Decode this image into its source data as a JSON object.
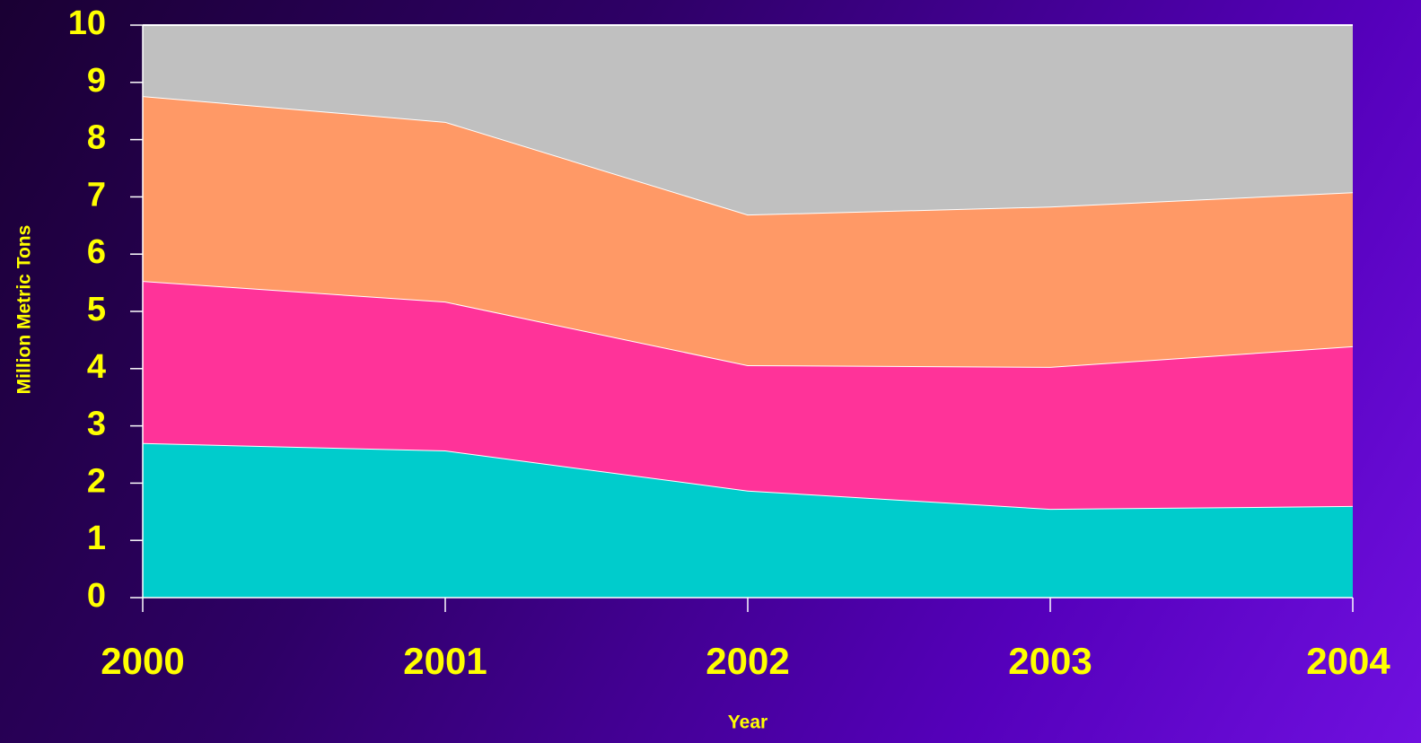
{
  "chart_data": {
    "type": "stacked_area",
    "x_label": "Year",
    "y_label": "Million Metric Tons",
    "categories": [
      "2000",
      "2001",
      "2002",
      "2003",
      "2004"
    ],
    "series": [
      {
        "color": "#00cccc",
        "values": [
          2.7,
          2.57,
          1.87,
          1.55,
          1.6
        ]
      },
      {
        "color": "#ff3399",
        "values": [
          2.83,
          2.6,
          2.19,
          2.48,
          2.79
        ]
      },
      {
        "color": "#ff9966",
        "values": [
          3.23,
          3.14,
          2.63,
          2.8,
          2.69
        ]
      },
      {
        "color": "#c0c0c0",
        "values": [
          1.24,
          1.69,
          3.31,
          3.17,
          2.92
        ]
      }
    ],
    "ylim": [
      0,
      10
    ],
    "yticks": [
      0,
      1,
      2,
      3,
      4,
      5,
      6,
      7,
      8,
      9,
      10
    ],
    "grid": false
  }
}
